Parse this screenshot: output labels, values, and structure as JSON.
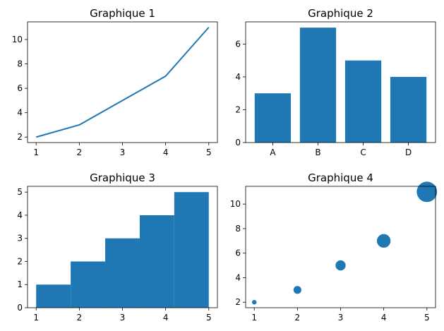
{
  "colors": {
    "accent": "#1f77b4",
    "axis": "#000000",
    "background": "#ffffff"
  },
  "chart_data": [
    {
      "type": "line",
      "title": "Graphique 1",
      "x": [
        1,
        2,
        3,
        4,
        5
      ],
      "y": [
        2,
        3,
        5,
        7,
        11
      ],
      "xlim": [
        0.8,
        5.2
      ],
      "ylim": [
        1.55,
        11.45
      ],
      "xticks": [
        1,
        2,
        3,
        4,
        5
      ],
      "yticks": [
        2,
        4,
        6,
        8,
        10
      ],
      "grid": false
    },
    {
      "type": "bar",
      "title": "Graphique 2",
      "categories": [
        "A",
        "B",
        "C",
        "D"
      ],
      "values": [
        3,
        7,
        5,
        4
      ],
      "ylim": [
        0,
        7.35
      ],
      "yticks": [
        0,
        2,
        4,
        6
      ],
      "grid": false
    },
    {
      "type": "bar",
      "variant": "histogram",
      "title": "Graphique 3",
      "bins": [
        {
          "from": 1.0,
          "to": 1.8,
          "count": 1
        },
        {
          "from": 1.8,
          "to": 2.6,
          "count": 2
        },
        {
          "from": 2.6,
          "to": 3.4,
          "count": 3
        },
        {
          "from": 3.4,
          "to": 4.2,
          "count": 4
        },
        {
          "from": 4.2,
          "to": 5.0,
          "count": 5
        }
      ],
      "xlim": [
        0.8,
        5.2
      ],
      "ylim": [
        0,
        5.25
      ],
      "xticks": [
        1,
        2,
        3,
        4,
        5
      ],
      "yticks": [
        0,
        1,
        2,
        3,
        4,
        5
      ],
      "grid": false
    },
    {
      "type": "scatter",
      "title": "Graphique 4",
      "x": [
        1,
        2,
        3,
        4,
        5
      ],
      "y": [
        2,
        3,
        5,
        7,
        11
      ],
      "sizes": [
        20,
        60,
        100,
        180,
        400
      ],
      "xlim": [
        0.8,
        5.2
      ],
      "ylim": [
        1.55,
        11.45
      ],
      "xticks": [
        1,
        2,
        3,
        4,
        5
      ],
      "yticks": [
        2,
        4,
        6,
        8,
        10
      ],
      "grid": false
    }
  ]
}
